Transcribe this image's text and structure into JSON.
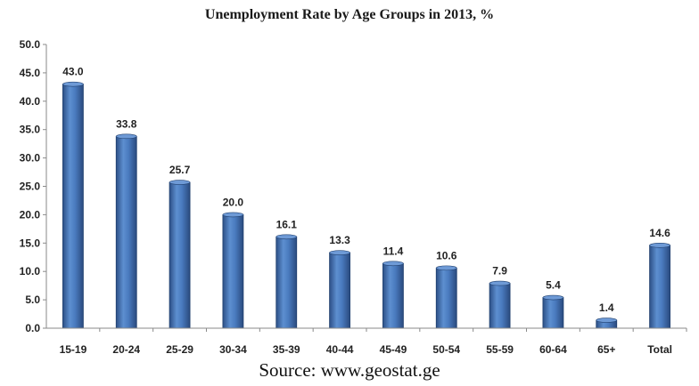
{
  "chart_data": {
    "type": "bar",
    "title": "Unemployment Rate by Age Groups in 2013, %",
    "categories": [
      "15-19",
      "20-24",
      "25-29",
      "30-34",
      "35-39",
      "40-44",
      "45-49",
      "50-54",
      "55-59",
      "60-64",
      "65+",
      "Total"
    ],
    "values": [
      43.0,
      33.8,
      25.7,
      20.0,
      16.1,
      13.3,
      11.4,
      10.6,
      7.9,
      5.4,
      1.4,
      14.6
    ],
    "value_labels": [
      "43.0",
      "33.8",
      "25.7",
      "20.0",
      "16.1",
      "13.3",
      "11.4",
      "10.6",
      "7.9",
      "5.4",
      "1.4",
      "14.6"
    ],
    "ylim": [
      0,
      50
    ],
    "yticks": [
      "0.0",
      "5.0",
      "10.0",
      "15.0",
      "20.0",
      "25.0",
      "30.0",
      "35.0",
      "40.0",
      "45.0",
      "50.0"
    ],
    "xlabel": "",
    "ylabel": "",
    "grid": false,
    "legend": "none",
    "bar_color": "#4f81bd",
    "bar_edge_color": "#1f3f6e"
  },
  "source": "Source: www.geostat.ge"
}
